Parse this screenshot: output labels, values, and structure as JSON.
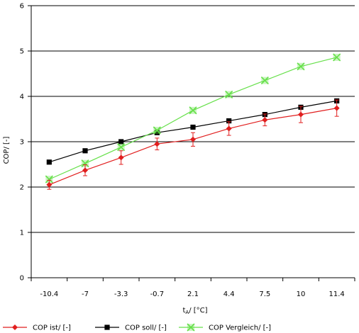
{
  "chart_data": {
    "type": "line",
    "categories": [
      "-10.4",
      "-7",
      "-3.3",
      "-0.7",
      "2.1",
      "4.4",
      "7.5",
      "10",
      "11.4"
    ],
    "ylabel": "COP/ [-]",
    "xlabel_main": "t",
    "xlabel_sub": "A",
    "xlabel_tail": "/ [°C]",
    "ylim": [
      0,
      6
    ],
    "yticks": [
      "0",
      "1",
      "2",
      "3",
      "4",
      "5",
      "6"
    ],
    "grid": "horizontal",
    "legend_position": "bottom",
    "series": [
      {
        "name": "COP ist/ [-]",
        "color": "#e11e1e",
        "marker": "diamond",
        "values": [
          2.05,
          2.37,
          2.65,
          2.95,
          3.05,
          3.29,
          3.48,
          3.6,
          3.74
        ],
        "error": [
          0.1,
          0.12,
          0.15,
          0.13,
          0.15,
          0.15,
          0.13,
          0.18,
          0.18
        ]
      },
      {
        "name": "COP soll/ [-]",
        "color": "#000000",
        "marker": "square",
        "values": [
          2.55,
          2.8,
          3.0,
          3.2,
          3.32,
          3.46,
          3.6,
          3.76,
          3.9
        ]
      },
      {
        "name": "COP Vergleich/ [-]",
        "color": "#66e04a",
        "marker": "x",
        "values": [
          2.17,
          2.52,
          2.88,
          3.25,
          3.69,
          4.04,
          4.35,
          4.66,
          4.86
        ]
      }
    ]
  }
}
